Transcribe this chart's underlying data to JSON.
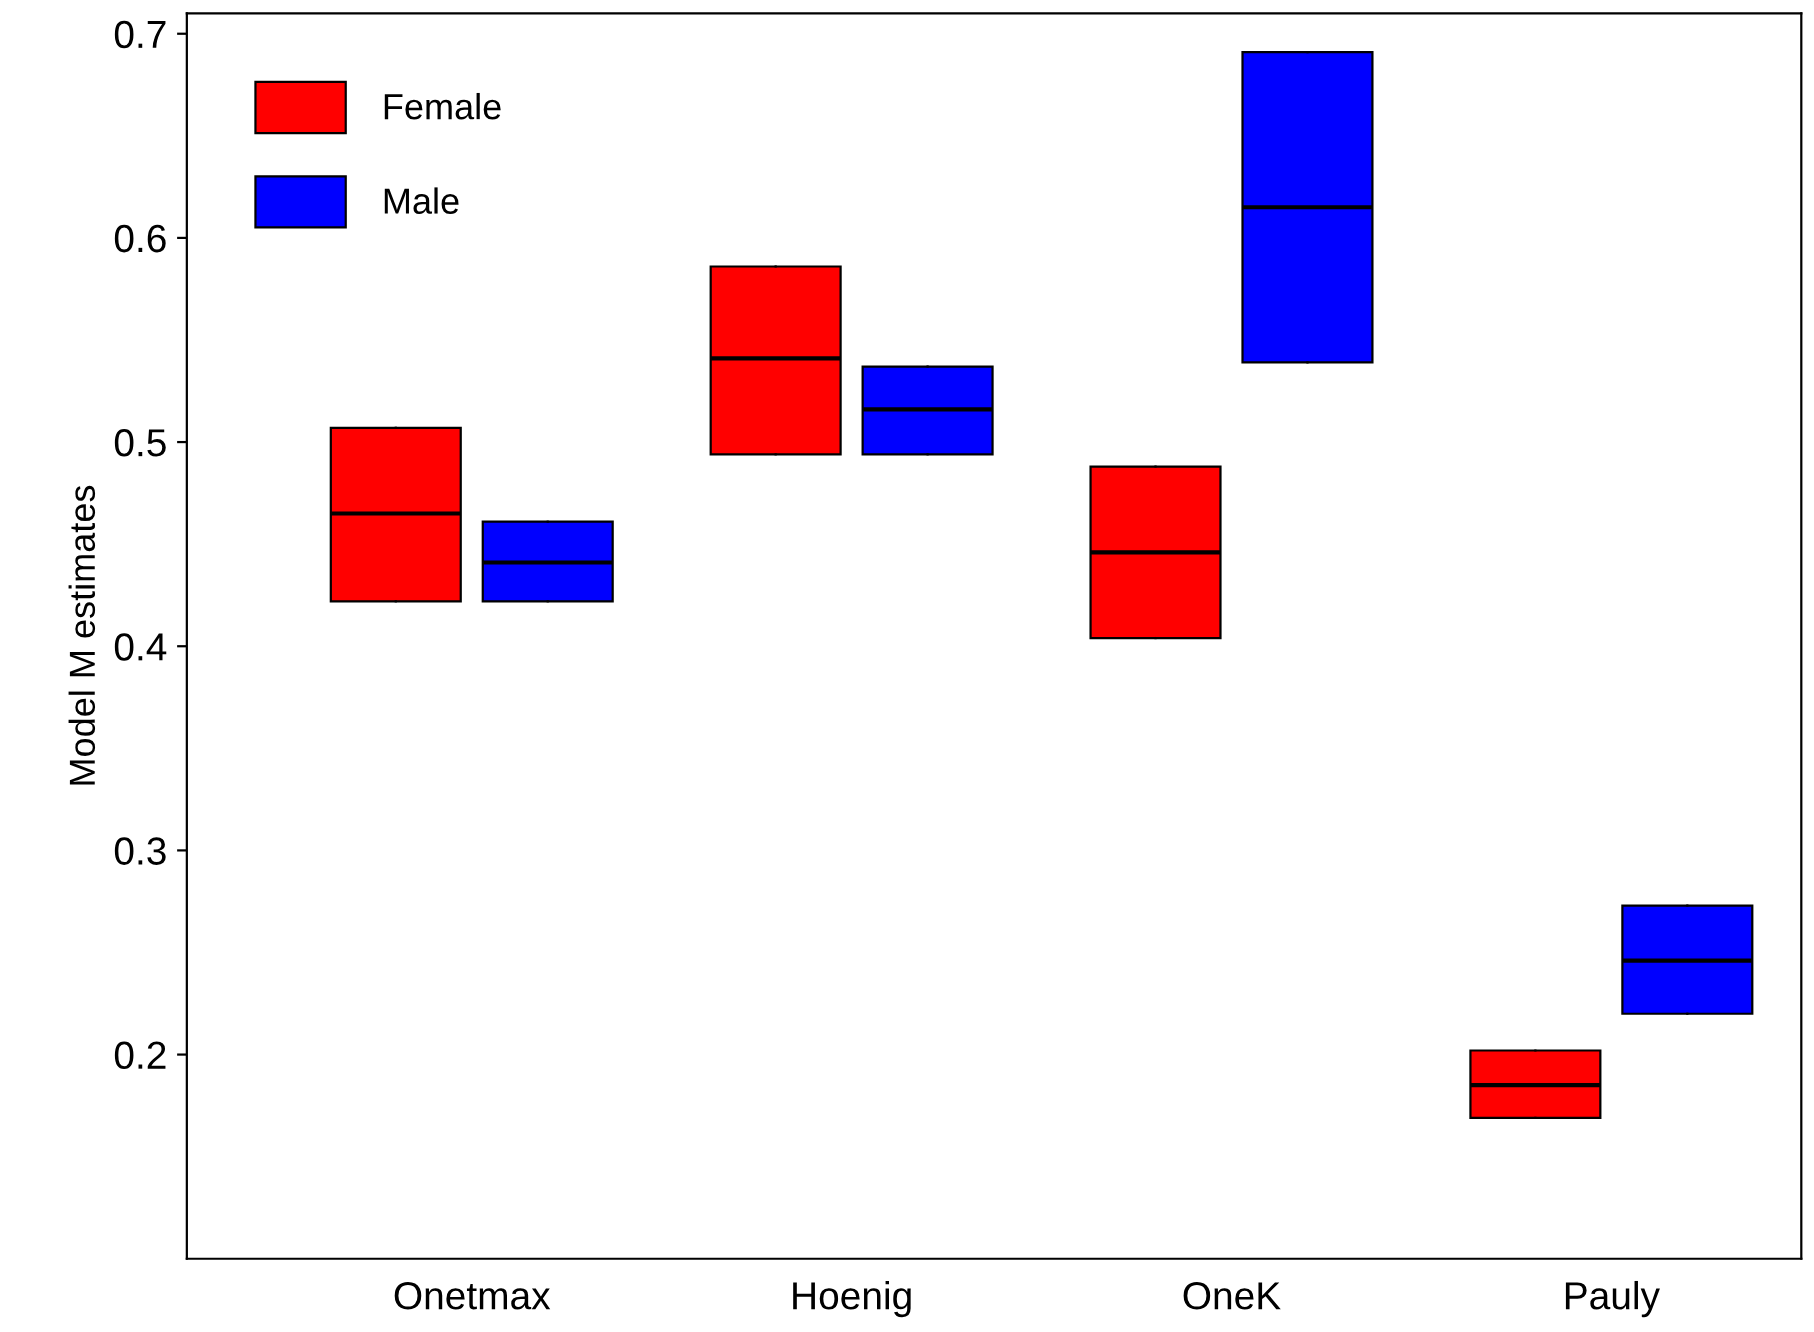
{
  "chart_data": {
    "type": "box",
    "ylabel": "Model M estimates",
    "categories": [
      "Onetmax",
      "Hoenig",
      "OneK",
      "Pauly"
    ],
    "series": [
      {
        "name": "Female",
        "color": "#ff0000",
        "boxes": [
          {
            "low": 0.422,
            "q1": 0.422,
            "median": 0.465,
            "q3": 0.507,
            "high": 0.507
          },
          {
            "low": 0.494,
            "q1": 0.494,
            "median": 0.541,
            "q3": 0.586,
            "high": 0.586
          },
          {
            "low": 0.404,
            "q1": 0.404,
            "median": 0.446,
            "q3": 0.488,
            "high": 0.488
          },
          {
            "low": 0.169,
            "q1": 0.169,
            "median": 0.185,
            "q3": 0.202,
            "high": 0.202
          }
        ]
      },
      {
        "name": "Male",
        "color": "#0000ff",
        "boxes": [
          {
            "low": 0.422,
            "q1": 0.422,
            "median": 0.441,
            "q3": 0.461,
            "high": 0.461
          },
          {
            "low": 0.494,
            "q1": 0.494,
            "median": 0.516,
            "q3": 0.537,
            "high": 0.537
          },
          {
            "low": 0.539,
            "q1": 0.539,
            "median": 0.615,
            "q3": 0.691,
            "high": 0.691
          },
          {
            "low": 0.22,
            "q1": 0.22,
            "median": 0.246,
            "q3": 0.273,
            "high": 0.273
          }
        ]
      }
    ],
    "ylim": [
      0.1,
      0.71
    ],
    "yticks": [
      0.2,
      0.3,
      0.4,
      0.5,
      0.6,
      0.7
    ],
    "legend": "top left",
    "grid": false
  }
}
